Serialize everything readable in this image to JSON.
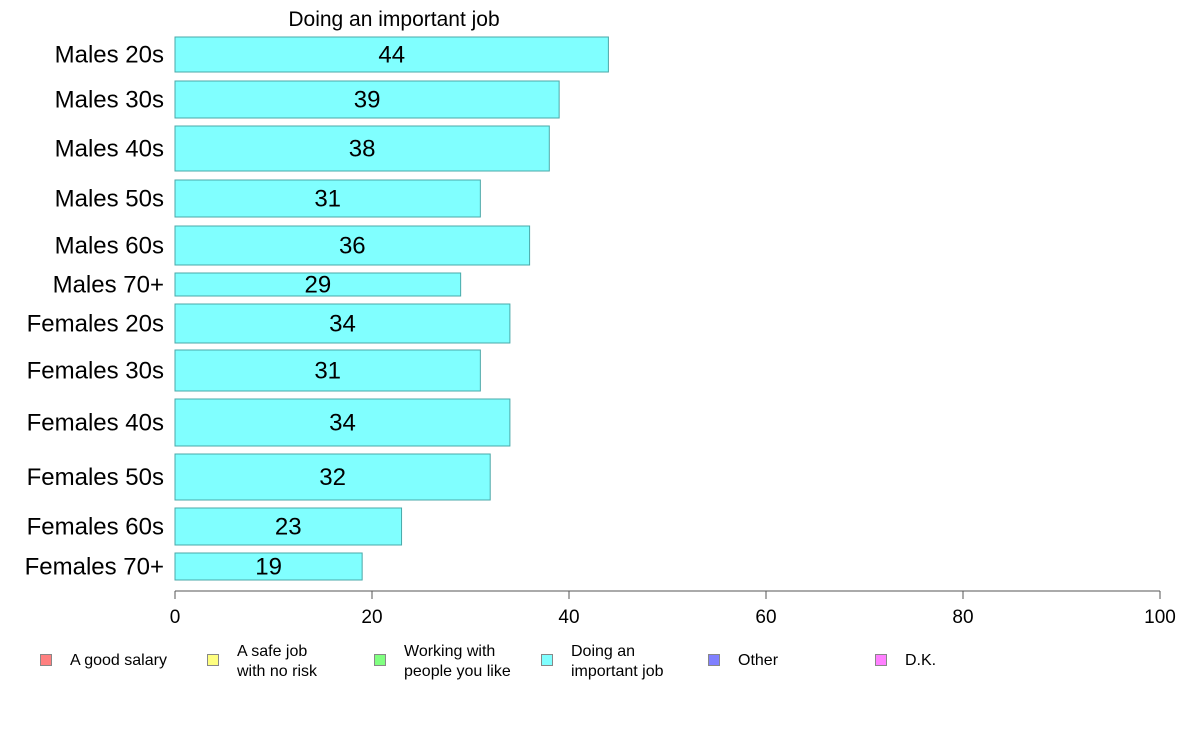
{
  "chart_data": {
    "type": "bar",
    "orientation": "horizontal",
    "title": "Doing an important job",
    "categories": [
      "Males 20s",
      "Males 30s",
      "Males 40s",
      "Males 50s",
      "Males 60s",
      "Males 70+",
      "Females 20s",
      "Females 30s",
      "Females 40s",
      "Females 50s",
      "Females 60s",
      "Females 70+"
    ],
    "values": [
      44,
      39,
      38,
      31,
      36,
      29,
      34,
      31,
      34,
      32,
      23,
      19
    ],
    "xlim": [
      0,
      100
    ],
    "xticks": [
      "0",
      "20",
      "40",
      "60",
      "80",
      "100"
    ],
    "bar_color": "#80ffff",
    "legend": {
      "placement": "bottom",
      "entries": [
        {
          "label": "A good salary",
          "color": "#ff8080"
        },
        {
          "label": "A safe job\nwith no risk",
          "color": "#ffff80"
        },
        {
          "label": "Working with\npeople you like",
          "color": "#80ff80"
        },
        {
          "label": "Doing an\nimportant job",
          "color": "#80ffff"
        },
        {
          "label": "Other",
          "color": "#8080ff"
        },
        {
          "label": "D.K.",
          "color": "#ff80ff"
        }
      ]
    }
  }
}
